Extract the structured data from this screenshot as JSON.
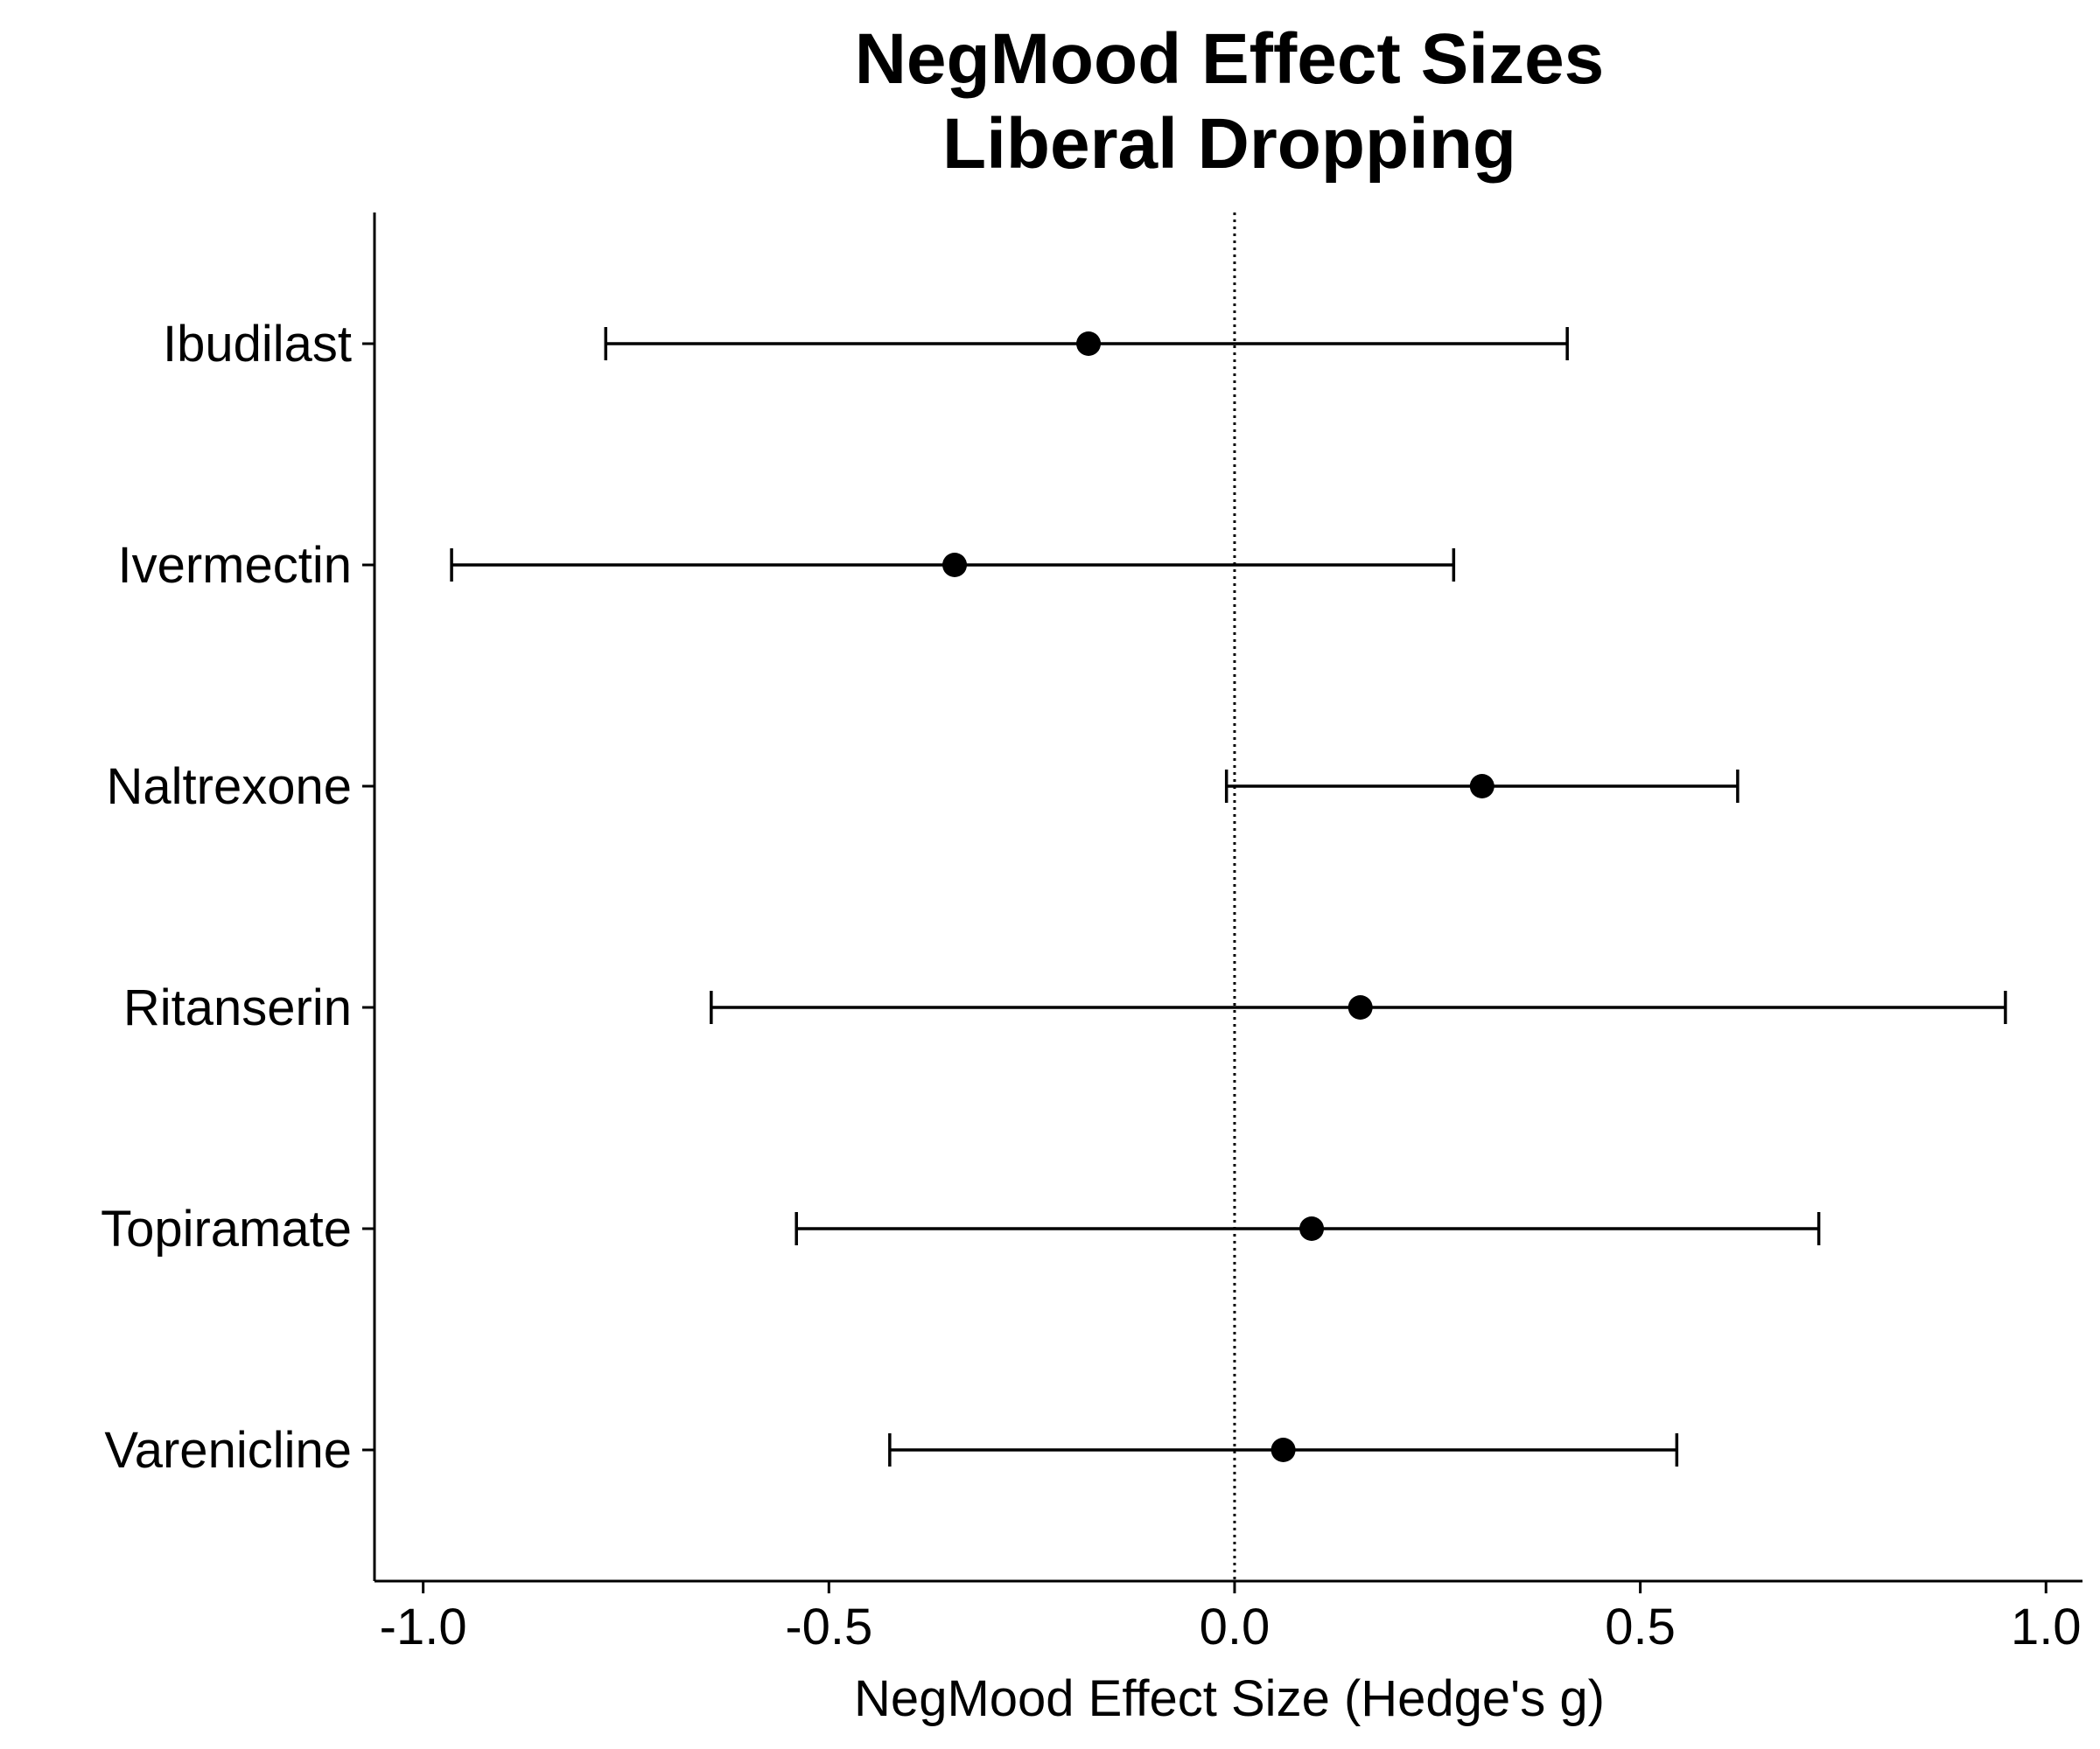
{
  "chart_data": {
    "type": "forest",
    "title": [
      "NegMood Effect Sizes",
      "Liberal Dropping"
    ],
    "xlabel": "NegMood Effect Size (Hedge's g)",
    "ylabel": "",
    "xlim": [
      -1.06,
      1.045
    ],
    "xticks": [
      -1.0,
      -0.5,
      0.0,
      0.5,
      1.0
    ],
    "xtick_labels": [
      "-1.0",
      "-0.5",
      "0.0",
      "0.5",
      "1.0"
    ],
    "reference_line": 0.0,
    "grid": false,
    "legend": "none",
    "categories": [
      "Ibudilast",
      "Ivermectin",
      "Naltrexone",
      "Ritanserin",
      "Topiramate",
      "Varenicline"
    ],
    "estimates": [
      -0.18,
      -0.345,
      0.305,
      0.155,
      0.095,
      0.06
    ],
    "ci_lower": [
      -0.775,
      -0.965,
      -0.01,
      -0.645,
      -0.54,
      -0.425
    ],
    "ci_upper": [
      0.41,
      0.27,
      0.62,
      0.95,
      0.72,
      0.545
    ],
    "colors": {
      "ink": "#000000",
      "background": "#ffffff"
    }
  }
}
